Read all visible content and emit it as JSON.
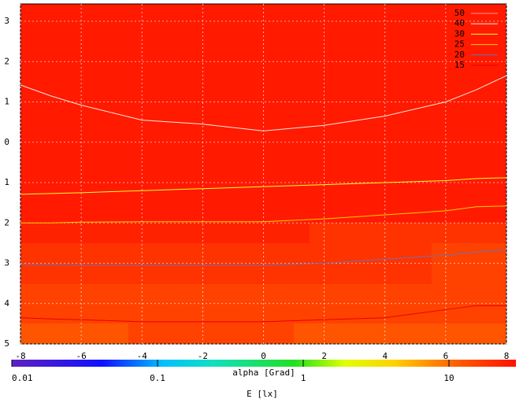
{
  "chart_data": {
    "type": "contour",
    "x": [
      -8,
      -7,
      -6,
      -4,
      -2,
      0,
      2,
      4,
      6,
      7,
      8
    ],
    "series": [
      {
        "name": "50",
        "color": "#ff9a8a",
        "values": [
          null,
          null,
          null,
          null,
          null,
          null,
          null,
          null,
          null,
          null,
          null
        ]
      },
      {
        "name": "40",
        "color": "#ffe8e0",
        "values": [
          1.42,
          1.15,
          0.92,
          0.55,
          0.45,
          0.28,
          0.42,
          0.65,
          1.0,
          1.3,
          1.65
        ]
      },
      {
        "name": "30",
        "color": "#ffff30",
        "values": [
          -1.29,
          -1.27,
          -1.25,
          -1.2,
          -1.15,
          -1.1,
          -1.05,
          -1.0,
          -0.95,
          -0.9,
          -0.88
        ]
      },
      {
        "name": "25",
        "color": "#ffd000",
        "values": [
          -2.0,
          -2.0,
          -1.98,
          -1.97,
          -1.97,
          -1.97,
          -1.9,
          -1.8,
          -1.7,
          -1.6,
          -1.58
        ]
      },
      {
        "name": "20",
        "color": "#7070b0",
        "values": [
          -3.03,
          -3.04,
          -3.05,
          -3.05,
          -3.05,
          -3.05,
          -3.0,
          -2.9,
          -2.8,
          -2.72,
          -2.67
        ]
      },
      {
        "name": "15",
        "color": "#e80000",
        "values": [
          -4.35,
          -4.38,
          -4.4,
          -4.45,
          -4.45,
          -4.45,
          -4.4,
          -4.35,
          -4.15,
          -4.05,
          -4.05
        ]
      }
    ],
    "xlim": [
      -8,
      8
    ],
    "xticks": [
      -8,
      -6,
      -4,
      -2,
      0,
      2,
      4,
      6,
      8
    ],
    "ylim": [
      -5,
      3.43
    ],
    "yticks": [
      3,
      2,
      1,
      0,
      {
        "value": -1,
        "label": "1"
      },
      {
        "value": -2,
        "label": "2"
      },
      {
        "value": -3,
        "label": "3"
      },
      {
        "value": -4,
        "label": "4"
      },
      {
        "value": -5,
        "label": "5"
      }
    ],
    "grid": true,
    "legend": "top-right",
    "colorbar": {
      "label": "alpha [Grad]",
      "xlabel": "E [lx]",
      "log": true,
      "xlim": [
        0.01,
        28.8
      ],
      "xticks": [
        0.01,
        0.1,
        1,
        10
      ]
    }
  }
}
